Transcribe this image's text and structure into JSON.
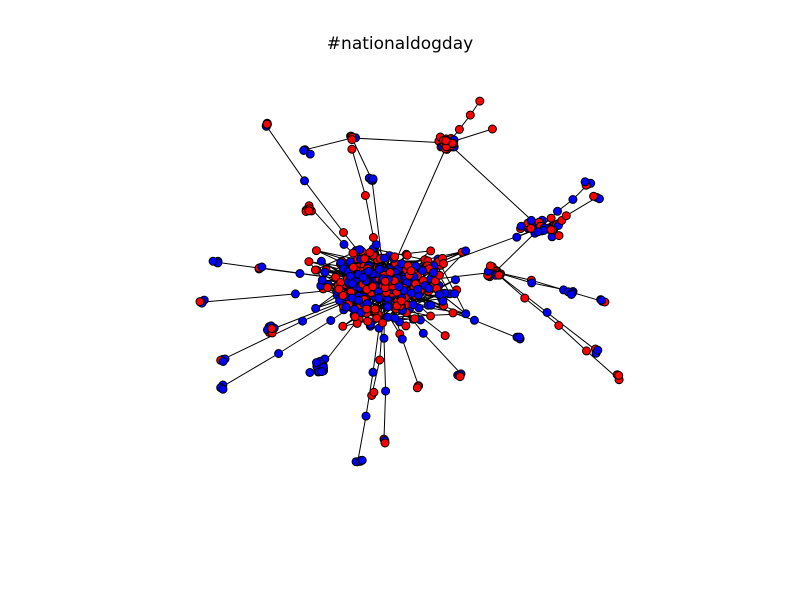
{
  "figure": {
    "title": "#nationaldogday"
  },
  "graph": {
    "node_colors": [
      "#0000ff",
      "#ff0000"
    ],
    "node_stroke": "#000000",
    "edge_color": "#000000"
  }
}
